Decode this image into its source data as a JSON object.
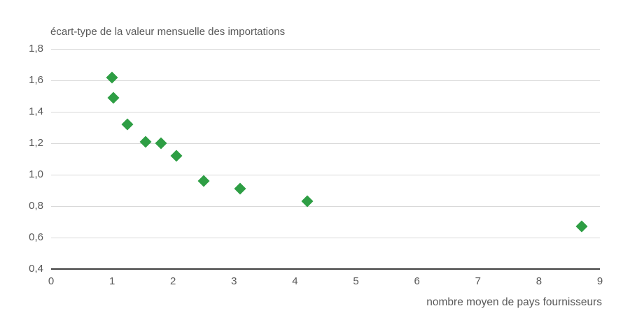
{
  "chart_data": {
    "type": "scatter",
    "title": "écart-type de la valeur mensuelle des importations",
    "xlabel": "nombre moyen de pays fournisseurs",
    "ylabel": "",
    "xlim": [
      0,
      9
    ],
    "ylim": [
      0.4,
      1.8
    ],
    "grid": "horizontal",
    "legend": "none",
    "x_ticks": [
      {
        "v": 0,
        "label": "0"
      },
      {
        "v": 1,
        "label": "1"
      },
      {
        "v": 2,
        "label": "2"
      },
      {
        "v": 3,
        "label": "3"
      },
      {
        "v": 4,
        "label": "4"
      },
      {
        "v": 5,
        "label": "5"
      },
      {
        "v": 6,
        "label": "6"
      },
      {
        "v": 7,
        "label": "7"
      },
      {
        "v": 8,
        "label": "8"
      },
      {
        "v": 9,
        "label": "9"
      }
    ],
    "y_ticks": [
      {
        "v": 1.8,
        "label": "1,8"
      },
      {
        "v": 1.6,
        "label": "1,6"
      },
      {
        "v": 1.4,
        "label": "1,4"
      },
      {
        "v": 1.2,
        "label": "1,2"
      },
      {
        "v": 1.0,
        "label": "1,0"
      },
      {
        "v": 0.8,
        "label": "0,8"
      },
      {
        "v": 0.6,
        "label": "0,6"
      },
      {
        "v": 0.4,
        "label": "0,4"
      }
    ],
    "series": [
      {
        "marker": "diamond",
        "color": "#2e9e44",
        "points": [
          [
            1.0,
            1.62
          ],
          [
            1.02,
            1.49
          ],
          [
            1.25,
            1.32
          ],
          [
            1.55,
            1.21
          ],
          [
            1.8,
            1.2
          ],
          [
            2.05,
            1.12
          ],
          [
            2.5,
            0.96
          ],
          [
            3.1,
            0.91
          ],
          [
            4.2,
            0.83
          ],
          [
            8.7,
            0.67
          ]
        ]
      }
    ],
    "colors": {
      "marker": "#2e9e44",
      "grid_line": "#d9d9d9",
      "axis_line": "#404040",
      "text": "#595959",
      "background": "#ffffff"
    }
  }
}
